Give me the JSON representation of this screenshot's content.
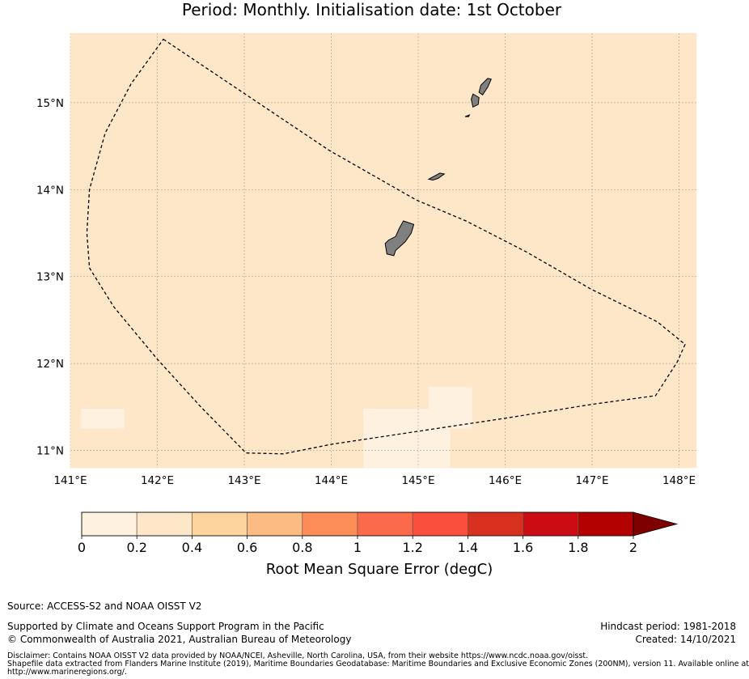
{
  "title": {
    "line1": "Period: Monthly. Initialisation date: 1st October"
  },
  "map": {
    "lon_range": [
      141,
      148.2
    ],
    "lat_range": [
      10.8,
      15.8
    ],
    "x_ticks": [
      {
        "value": 141,
        "label": "141°E"
      },
      {
        "value": 142,
        "label": "142°E"
      },
      {
        "value": 143,
        "label": "143°E"
      },
      {
        "value": 144,
        "label": "144°E"
      },
      {
        "value": 145,
        "label": "145°E"
      },
      {
        "value": 146,
        "label": "146°E"
      },
      {
        "value": 147,
        "label": "147°E"
      },
      {
        "value": 148,
        "label": "148°E"
      }
    ],
    "y_ticks": [
      {
        "value": 15,
        "label": "15°N"
      },
      {
        "value": 14,
        "label": "14°N"
      },
      {
        "value": 13,
        "label": "13°N"
      },
      {
        "value": 12,
        "label": "12°N"
      },
      {
        "value": 11,
        "label": "11°N"
      }
    ],
    "background_color": "#fee6c8",
    "grid": true,
    "eez_boundary": [
      [
        142.07,
        15.73
      ],
      [
        143.98,
        14.45
      ],
      [
        144.98,
        13.88
      ],
      [
        145.55,
        13.64
      ],
      [
        146.25,
        13.28
      ],
      [
        146.98,
        12.86
      ],
      [
        147.75,
        12.48
      ],
      [
        148.07,
        12.22
      ],
      [
        147.98,
        12.02
      ],
      [
        147.73,
        11.63
      ],
      [
        147.0,
        11.53
      ],
      [
        146.0,
        11.37
      ],
      [
        145.0,
        11.22
      ],
      [
        144.0,
        11.07
      ],
      [
        143.45,
        10.96
      ],
      [
        143.02,
        10.97
      ],
      [
        142.5,
        11.5
      ],
      [
        142.0,
        12.05
      ],
      [
        141.5,
        12.65
      ],
      [
        141.22,
        13.1
      ],
      [
        141.19,
        13.5
      ],
      [
        141.22,
        14.0
      ],
      [
        141.4,
        14.65
      ],
      [
        141.7,
        15.22
      ],
      [
        142.07,
        15.73
      ]
    ],
    "islands": [
      {
        "name": "",
        "coords": [
          [
            144.83,
            13.64
          ],
          [
            144.95,
            13.6
          ],
          [
            144.92,
            13.5
          ],
          [
            144.85,
            13.4
          ],
          [
            144.74,
            13.3
          ],
          [
            144.72,
            13.24
          ],
          [
            144.64,
            13.26
          ],
          [
            144.62,
            13.38
          ],
          [
            144.66,
            13.42
          ],
          [
            144.74,
            13.46
          ],
          [
            144.78,
            13.55
          ]
        ]
      },
      {
        "name": "",
        "coords": [
          [
            145.12,
            14.12
          ],
          [
            145.25,
            14.19
          ],
          [
            145.3,
            14.18
          ],
          [
            145.23,
            14.13
          ],
          [
            145.17,
            14.11
          ]
        ]
      },
      {
        "name": "",
        "coords": [
          [
            145.63,
            15.1
          ],
          [
            145.7,
            15.06
          ],
          [
            145.69,
            14.98
          ],
          [
            145.63,
            14.95
          ],
          [
            145.61,
            15.04
          ]
        ]
      },
      {
        "name": "",
        "coords": [
          [
            145.72,
            15.2
          ],
          [
            145.8,
            15.28
          ],
          [
            145.84,
            15.27
          ],
          [
            145.8,
            15.18
          ],
          [
            145.74,
            15.09
          ],
          [
            145.7,
            15.12
          ]
        ]
      },
      {
        "name": "",
        "coords": [
          [
            145.54,
            14.84
          ],
          [
            145.59,
            14.86
          ],
          [
            145.58,
            14.84
          ]
        ]
      }
    ],
    "low_error_cells": [
      {
        "lon": [
          141.12,
          141.62
        ],
        "lat": [
          11.25,
          11.48
        ],
        "value": 0.15
      },
      {
        "lon": [
          144.37,
          145.37
        ],
        "lat": [
          10.8,
          11.48
        ],
        "value": 0.15
      },
      {
        "lon": [
          145.12,
          145.62
        ],
        "lat": [
          11.25,
          11.73
        ],
        "value": 0.15
      }
    ]
  },
  "colorbar": {
    "colors": [
      "#fff1e0",
      "#fee6c8",
      "#fdd49e",
      "#fdbb84",
      "#fc8d59",
      "#fb6a4a",
      "#fa4f3c",
      "#d7301f",
      "#cb0c13",
      "#b30000",
      "#7f0000"
    ],
    "ticks": [
      "0",
      "0.2",
      "0.4",
      "0.6",
      "0.8",
      "1",
      "1.2",
      "1.4",
      "1.6",
      "1.8",
      "2"
    ],
    "label": "Root Mean Square Error (degC)"
  },
  "footer": {
    "source": "Source: ACCESS-S2 and NOAA OISST V2",
    "support": "Supported by Climate and Oceans Support Program in the Pacific",
    "copyright": "© Commonwealth of Australia 2021, Australian Bureau of Meteorology",
    "hindcast": "Hindcast period: 1981-2018",
    "created": "Created: 14/10/2021",
    "disclaimer_1": "Disclaimer: Contains NOAA OISST V2 data provided by NOAA/NCEI, Asheville, North Carolina, USA, from their website https://www.ncdc.noaa.gov/oisst.",
    "disclaimer_2": "Shapefile data extracted from Flanders Marine Institute (2019), Maritime Boundaries Geodatabase: Maritime Boundaries and Exclusive Economic Zones (200NM), version 11. Available online at",
    "disclaimer_3": "http://www.marineregions.org/."
  }
}
